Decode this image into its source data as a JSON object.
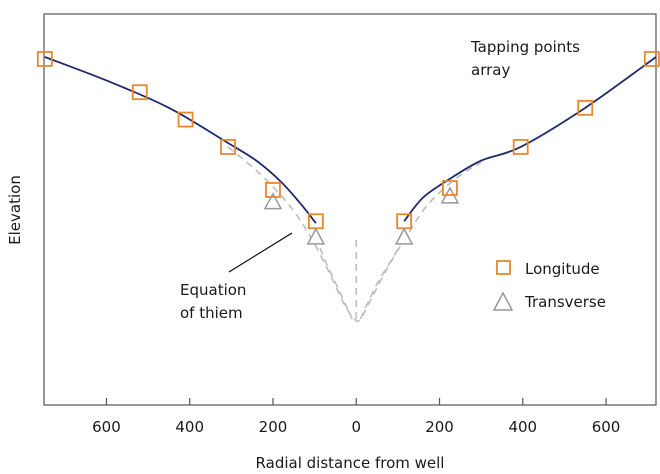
{
  "chart_data": {
    "type": "line",
    "xlabel": "Radial distance from well",
    "ylabel": "Elevation",
    "x_tick_labels": [
      "600",
      "400",
      "200",
      "0",
      "200",
      "400",
      "600"
    ],
    "x_ticks": [
      -600,
      -400,
      -200,
      0,
      200,
      400,
      600
    ],
    "xlim": [
      -750,
      720
    ],
    "ylim": [
      0,
      1
    ],
    "grid": false,
    "legend_position": "right",
    "series": [
      {
        "name": "Longitude",
        "marker": "square",
        "color": "#E8882E",
        "points": [
          [
            -748,
            0.885
          ],
          [
            -520,
            0.8
          ],
          [
            -410,
            0.73
          ],
          [
            -308,
            0.66
          ],
          [
            -200,
            0.55
          ],
          [
            -97,
            0.47
          ],
          [
            115,
            0.47
          ],
          [
            225,
            0.555
          ],
          [
            395,
            0.66
          ],
          [
            550,
            0.76
          ],
          [
            710,
            0.885
          ]
        ]
      },
      {
        "name": "Transverse",
        "marker": "triangle",
        "color": "#999999",
        "points": [
          [
            -200,
            0.52
          ],
          [
            -97,
            0.43
          ],
          [
            115,
            0.43
          ],
          [
            225,
            0.535
          ]
        ]
      }
    ],
    "curves": [
      {
        "name": "Tapping points array",
        "style": "solid",
        "color": "#1F2A6B",
        "points": [
          [
            -748,
            0.89
          ],
          [
            -600,
            0.83
          ],
          [
            -450,
            0.76
          ],
          [
            -308,
            0.67
          ],
          [
            -240,
            0.625
          ],
          [
            -180,
            0.57
          ],
          [
            -130,
            0.51
          ],
          [
            -97,
            0.465
          ],
          [
            115,
            0.47
          ],
          [
            160,
            0.53
          ],
          [
            220,
            0.575
          ],
          [
            300,
            0.625
          ],
          [
            395,
            0.66
          ],
          [
            550,
            0.76
          ],
          [
            720,
            0.89
          ]
        ]
      },
      {
        "name": "Equation of thiem",
        "style": "dashed",
        "color": "#BDBDBD",
        "points": [
          [
            -308,
            0.66
          ],
          [
            -230,
            0.59
          ],
          [
            -160,
            0.51
          ],
          [
            -110,
            0.43
          ],
          [
            -70,
            0.35
          ],
          [
            -30,
            0.26
          ],
          [
            -5,
            0.22
          ],
          [
            10,
            0.22
          ],
          [
            40,
            0.28
          ],
          [
            80,
            0.36
          ],
          [
            120,
            0.43
          ],
          [
            170,
            0.51
          ],
          [
            240,
            0.58
          ],
          [
            300,
            0.62
          ]
        ]
      },
      {
        "name": "",
        "style": "dashed",
        "color": "#BDBDBD",
        "points": [
          [
            -97,
            0.43
          ],
          [
            -75,
            0.37
          ],
          [
            -40,
            0.29
          ],
          [
            -10,
            0.22
          ]
        ]
      },
      {
        "name": "",
        "style": "dashed",
        "color": "#BDBDBD",
        "points": [
          [
            10,
            0.22
          ],
          [
            50,
            0.31
          ],
          [
            90,
            0.38
          ],
          [
            115,
            0.43
          ]
        ]
      },
      {
        "name": "",
        "style": "dashed",
        "color": "#BDBDBD",
        "points": [
          [
            0,
            0.22
          ],
          [
            0,
            0.43
          ]
        ]
      }
    ],
    "annotations": [
      {
        "name": "tapping-points-label",
        "lines": [
          "Tapping points",
          "array"
        ]
      },
      {
        "name": "thiem-label",
        "lines": [
          "Equation",
          "of thiem"
        ]
      }
    ],
    "legend": [
      {
        "label": "Longitude",
        "marker": "square",
        "color": "#E8882E"
      },
      {
        "label": "Transverse",
        "marker": "triangle",
        "color": "#999999"
      }
    ]
  }
}
